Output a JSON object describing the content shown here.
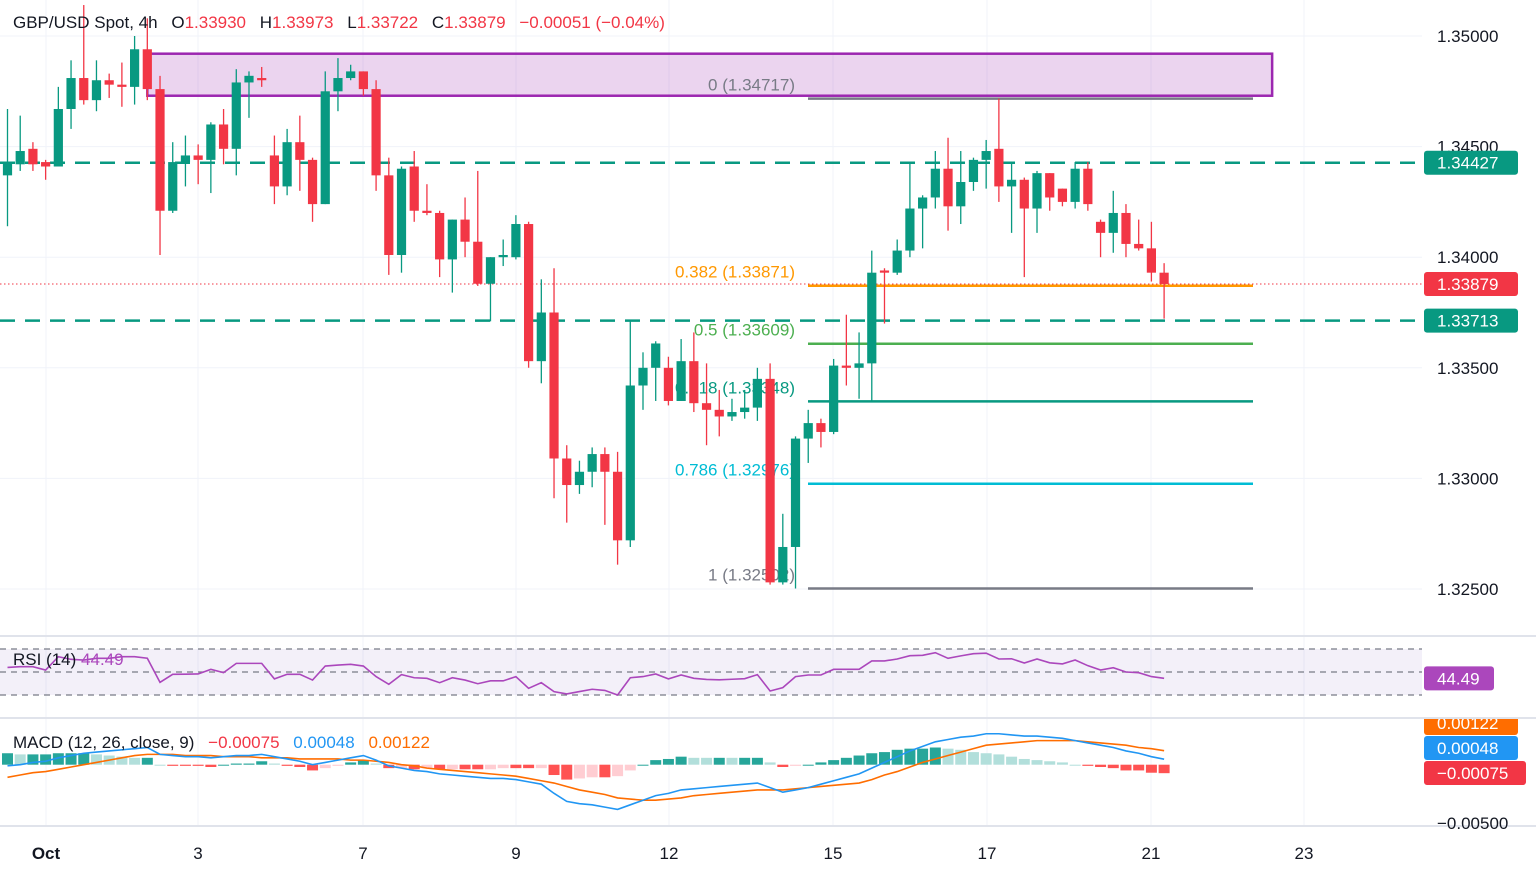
{
  "header": {
    "symbol": "GBP/USD Spot",
    "interval": "4h",
    "o_label": "O",
    "open": "1.33930",
    "h_label": "H",
    "high": "1.33973",
    "l_label": "L",
    "low": "1.33722",
    "c_label": "C",
    "close": "1.33879",
    "change": "−0.00051 (−0.04%)"
  },
  "chart_data": {
    "type": "candlestick",
    "timeframe": "4h",
    "ylim": [
      1.3233,
      1.3516
    ],
    "grid": true,
    "colors": {
      "up": "#089981",
      "down": "#f23645"
    },
    "y_ticks": [
      {
        "value": 1.35,
        "label": "1.35000"
      },
      {
        "value": 1.345,
        "label": "1.34500"
      },
      {
        "value": 1.34,
        "label": "1.34000"
      },
      {
        "value": 1.335,
        "label": "1.33500"
      },
      {
        "value": 1.33,
        "label": "1.33000"
      },
      {
        "value": 1.325,
        "label": "1.32500"
      }
    ],
    "x_ticks": [
      "Oct",
      "3",
      "7",
      "9",
      "12",
      "15",
      "17",
      "21",
      "23"
    ],
    "candles": [
      [
        1.3437,
        1.3467,
        1.3414,
        1.3443
      ],
      [
        1.3442,
        1.3464,
        1.3439,
        1.3448
      ],
      [
        1.3449,
        1.3452,
        1.3439,
        1.3442
      ],
      [
        1.3443,
        1.3444,
        1.3435,
        1.3441
      ],
      [
        1.3441,
        1.3477,
        1.3441,
        1.3467
      ],
      [
        1.3467,
        1.3489,
        1.3458,
        1.3481
      ],
      [
        1.3481,
        1.3514,
        1.3469,
        1.3471
      ],
      [
        1.3471,
        1.3489,
        1.3466,
        1.348
      ],
      [
        1.348,
        1.3483,
        1.3472,
        1.3478
      ],
      [
        1.3478,
        1.3488,
        1.3468,
        1.3477
      ],
      [
        1.3477,
        1.35,
        1.3469,
        1.3494
      ],
      [
        1.3494,
        1.3508,
        1.3471,
        1.3476
      ],
      [
        1.3476,
        1.3482,
        1.3401,
        1.3421
      ],
      [
        1.3421,
        1.3452,
        1.342,
        1.3443
      ],
      [
        1.3443,
        1.3455,
        1.3432,
        1.3446
      ],
      [
        1.3446,
        1.3451,
        1.3433,
        1.3444
      ],
      [
        1.3444,
        1.3461,
        1.3429,
        1.346
      ],
      [
        1.346,
        1.3467,
        1.3442,
        1.3449
      ],
      [
        1.3449,
        1.3485,
        1.3437,
        1.3479
      ],
      [
        1.3479,
        1.3484,
        1.3463,
        1.3482
      ],
      [
        1.3481,
        1.3486,
        1.3477,
        1.348
      ],
      [
        1.3446,
        1.3455,
        1.3424,
        1.3432
      ],
      [
        1.3432,
        1.3458,
        1.3428,
        1.3452
      ],
      [
        1.3452,
        1.3464,
        1.343,
        1.3444
      ],
      [
        1.3444,
        1.3445,
        1.3416,
        1.3424
      ],
      [
        1.3424,
        1.3484,
        1.3424,
        1.3475
      ],
      [
        1.3475,
        1.349,
        1.3466,
        1.3481
      ],
      [
        1.3481,
        1.3487,
        1.348,
        1.3484
      ],
      [
        1.3484,
        1.3484,
        1.3473,
        1.3476
      ],
      [
        1.3476,
        1.348,
        1.343,
        1.3437
      ],
      [
        1.3437,
        1.3445,
        1.3392,
        1.3401
      ],
      [
        1.3401,
        1.3441,
        1.3393,
        1.344
      ],
      [
        1.3441,
        1.3448,
        1.3416,
        1.3421
      ],
      [
        1.3421,
        1.3433,
        1.3419,
        1.342
      ],
      [
        1.342,
        1.3421,
        1.3391,
        1.3399
      ],
      [
        1.3399,
        1.3417,
        1.3384,
        1.3417
      ],
      [
        1.3417,
        1.3427,
        1.34,
        1.3407
      ],
      [
        1.3407,
        1.3439,
        1.3387,
        1.3388
      ],
      [
        1.3388,
        1.34,
        1.3371,
        1.34
      ],
      [
        1.34,
        1.3408,
        1.3396,
        1.3401
      ],
      [
        1.34,
        1.3419,
        1.3399,
        1.3415
      ],
      [
        1.3415,
        1.3416,
        1.335,
        1.3353
      ],
      [
        1.3353,
        1.339,
        1.3343,
        1.3375
      ],
      [
        1.3375,
        1.3395,
        1.3291,
        1.3309
      ],
      [
        1.3309,
        1.3315,
        1.328,
        1.3297
      ],
      [
        1.3297,
        1.3308,
        1.3293,
        1.3303
      ],
      [
        1.3303,
        1.3314,
        1.3296,
        1.3311
      ],
      [
        1.3311,
        1.3314,
        1.3279,
        1.3303
      ],
      [
        1.3303,
        1.3312,
        1.3261,
        1.3272
      ],
      [
        1.3272,
        1.3371,
        1.3269,
        1.3342
      ],
      [
        1.3342,
        1.3357,
        1.3331,
        1.335
      ],
      [
        1.335,
        1.3362,
        1.3335,
        1.3361
      ],
      [
        1.335,
        1.3355,
        1.3333,
        1.3335
      ],
      [
        1.3335,
        1.3363,
        1.3335,
        1.3353
      ],
      [
        1.3353,
        1.3366,
        1.333,
        1.3334
      ],
      [
        1.3334,
        1.3352,
        1.3315,
        1.3331
      ],
      [
        1.3331,
        1.334,
        1.3319,
        1.3328
      ],
      [
        1.3328,
        1.3336,
        1.3326,
        1.333
      ],
      [
        1.333,
        1.334,
        1.3327,
        1.3332
      ],
      [
        1.3332,
        1.335,
        1.3326,
        1.3345
      ],
      [
        1.3345,
        1.3352,
        1.3252,
        1.3253
      ],
      [
        1.3253,
        1.3284,
        1.3252,
        1.3269
      ],
      [
        1.3269,
        1.3319,
        1.32502,
        1.3318
      ],
      [
        1.3318,
        1.3331,
        1.3307,
        1.3325
      ],
      [
        1.3325,
        1.3327,
        1.3314,
        1.3321
      ],
      [
        1.3321,
        1.3354,
        1.332,
        1.3351
      ],
      [
        1.3351,
        1.3374,
        1.3342,
        1.335
      ],
      [
        1.335,
        1.3366,
        1.3336,
        1.3352
      ],
      [
        1.3352,
        1.3403,
        1.3335,
        1.3393
      ],
      [
        1.3394,
        1.3395,
        1.337,
        1.3393
      ],
      [
        1.3393,
        1.3408,
        1.3392,
        1.3403
      ],
      [
        1.3403,
        1.3443,
        1.34,
        1.3422
      ],
      [
        1.3422,
        1.3428,
        1.3404,
        1.3427
      ],
      [
        1.3427,
        1.3448,
        1.3422,
        1.344
      ],
      [
        1.344,
        1.3454,
        1.3412,
        1.3423
      ],
      [
        1.3423,
        1.3448,
        1.3415,
        1.3434
      ],
      [
        1.3434,
        1.3445,
        1.343,
        1.3444
      ],
      [
        1.3444,
        1.3453,
        1.3431,
        1.3448
      ],
      [
        1.3449,
        1.34717,
        1.3425,
        1.3432
      ],
      [
        1.3432,
        1.3443,
        1.3411,
        1.3435
      ],
      [
        1.3435,
        1.3436,
        1.3391,
        1.3422
      ],
      [
        1.3422,
        1.3439,
        1.3411,
        1.3438
      ],
      [
        1.3438,
        1.3438,
        1.3421,
        1.3427
      ],
      [
        1.3431,
        1.3431,
        1.3423,
        1.3425
      ],
      [
        1.3425,
        1.3443,
        1.3422,
        1.344
      ],
      [
        1.344,
        1.3443,
        1.3421,
        1.3424
      ],
      [
        1.3416,
        1.3417,
        1.34,
        1.3411
      ],
      [
        1.3411,
        1.343,
        1.3402,
        1.342
      ],
      [
        1.342,
        1.3424,
        1.34,
        1.3406
      ],
      [
        1.3406,
        1.3417,
        1.3403,
        1.3404
      ],
      [
        1.3404,
        1.3416,
        1.3389,
        1.3393
      ],
      [
        1.3393,
        1.33973,
        1.33722,
        1.33879
      ]
    ],
    "horizontal_levels": [
      {
        "price": 1.34427,
        "label": "1.34427",
        "style": "dashed",
        "color": "#089981"
      },
      {
        "price": 1.33713,
        "label": "1.33713",
        "style": "dashed",
        "color": "#089981"
      }
    ],
    "last_price": {
      "price": 1.33879,
      "label": "1.33879",
      "color": "#f23645"
    },
    "zone": {
      "top": 1.3492,
      "bottom": 1.3473,
      "color": "#9c27b0"
    },
    "fibonacci": [
      {
        "label": "0 (1.34717)",
        "price": 1.34717,
        "color": "#787b86"
      },
      {
        "label": "0.382 (1.33871)",
        "price": 1.33871,
        "color": "#ff9800"
      },
      {
        "label": "0.5 (1.33609)",
        "price": 1.33609,
        "color": "#4caf50"
      },
      {
        "label": "0.618 (1.33348)",
        "price": 1.33348,
        "color": "#089981"
      },
      {
        "label": "0.786 (1.32976)",
        "price": 1.32976,
        "color": "#00bcd4"
      },
      {
        "label": "1 (1.32502)",
        "price": 1.32502,
        "color": "#787b86"
      }
    ]
  },
  "rsi": {
    "label": "RSI (14)",
    "value": "44.49",
    "color": "#ab47bc",
    "levels": [
      70,
      50,
      30
    ],
    "values": [
      54,
      54.6,
      54.6,
      51.7,
      63.3,
      61,
      60.4,
      61.9,
      61.9,
      63.3,
      63.3,
      62,
      41,
      48,
      48.1,
      48.3,
      52.3,
      49.4,
      57.5,
      57.5,
      57.5,
      44,
      48,
      48,
      43,
      55.2,
      56,
      56.7,
      55.2,
      46,
      39.3,
      47.7,
      45,
      44.5,
      40.7,
      45,
      43,
      39.8,
      42.3,
      42.3,
      46,
      35.8,
      40.7,
      32.9,
      30.9,
      33,
      35,
      34,
      30,
      45,
      46,
      48.3,
      44,
      47.4,
      44.5,
      43.5,
      43.2,
      43.7,
      44.2,
      47.7,
      33.5,
      36.4,
      46,
      47.4,
      47.4,
      52.3,
      52.3,
      52.3,
      59.6,
      59.6,
      61.3,
      64.2,
      64.5,
      66.8,
      61.9,
      64,
      65.9,
      66.4,
      61.3,
      61.5,
      57.8,
      61.3,
      58,
      57,
      60.4,
      55.5,
      51.7,
      53.7,
      50,
      49.4,
      46,
      44.49
    ]
  },
  "macd": {
    "label": "MACD (12, 26, close, 9)",
    "hist_value": "−0.00075",
    "macd_value": "0.00048",
    "signal_value": "0.00122",
    "y_tick": "−0.00500",
    "colors": {
      "macd": "#2196f3",
      "signal": "#ff6d00",
      "hist_up_strong": "#26a69a",
      "hist_up_weak": "#b2dfdb",
      "hist_down_strong": "#ff5252",
      "hist_down_weak": "#ffcdd2"
    },
    "macd_line": [
      -0.0001,
      0,
      0.0002,
      0.0003,
      0.0006,
      0.0008,
      0.001,
      0.0011,
      0.0012,
      0.0013,
      0.0014,
      0.0015,
      0.0009,
      0.0008,
      0.0007,
      0.0007,
      0.0006,
      0.0007,
      0.0008,
      0.0008,
      0.0009,
      0.0007,
      0.0005,
      0.0003,
      0,
      0.0002,
      0.0004,
      0.0006,
      0.0008,
      0.0004,
      -0.0001,
      -0.0003,
      -0.0005,
      -0.0006,
      -0.0008,
      -0.0009,
      -0.001,
      -0.0011,
      -0.0012,
      -0.0012,
      -0.0013,
      -0.0015,
      -0.0017,
      -0.0025,
      -0.0032,
      -0.0034,
      -0.0035,
      -0.0037,
      -0.0039,
      -0.0035,
      -0.0031,
      -0.0027,
      -0.0025,
      -0.0022,
      -0.0021,
      -0.002,
      -0.0019,
      -0.0018,
      -0.0017,
      -0.0016,
      -0.002,
      -0.0024,
      -0.0022,
      -0.002,
      -0.0017,
      -0.0014,
      -0.0011,
      -0.0008,
      -0.0003,
      0.0002,
      0.0007,
      0.0012,
      0.0016,
      0.002,
      0.0022,
      0.0024,
      0.0025,
      0.0027,
      0.0027,
      0.0026,
      0.0025,
      0.0025,
      0.0024,
      0.0023,
      0.0021,
      0.0019,
      0.0017,
      0.0015,
      0.0012,
      0.001,
      0.0007,
      0.00048
    ],
    "signal_line": [
      -0.0011,
      -0.0009,
      -0.0007,
      -0.0006,
      -0.0004,
      -0.0002,
      0,
      0.0002,
      0.0004,
      0.0006,
      0.0008,
      0.0009,
      0.0009,
      0.0009,
      0.0008,
      0.0008,
      0.0008,
      0.0007,
      0.0007,
      0.0007,
      0.0006,
      0.0006,
      0.0006,
      0.0005,
      0.0005,
      0.0005,
      0.0005,
      0.0004,
      0.0004,
      0.0003,
      0.0002,
      0,
      -0.0001,
      -0.0003,
      -0.0004,
      -0.0005,
      -0.0006,
      -0.0007,
      -0.0008,
      -0.0009,
      -0.001,
      -0.0012,
      -0.0014,
      -0.0016,
      -0.0019,
      -0.0022,
      -0.0024,
      -0.0026,
      -0.0029,
      -0.003,
      -0.0031,
      -0.0031,
      -0.003,
      -0.0029,
      -0.0027,
      -0.0026,
      -0.0025,
      -0.0024,
      -0.0023,
      -0.0022,
      -0.0022,
      -0.0022,
      -0.0021,
      -0.002,
      -0.0019,
      -0.0018,
      -0.0017,
      -0.0016,
      -0.0013,
      -0.0009,
      -0.0006,
      -0.0002,
      0.0002,
      0.0005,
      0.0008,
      0.0011,
      0.0014,
      0.0017,
      0.0018,
      0.0019,
      0.002,
      0.0021,
      0.0021,
      0.0021,
      0.0021,
      0.002,
      0.0019,
      0.0018,
      0.0017,
      0.0015,
      0.0014,
      0.00122
    ]
  }
}
